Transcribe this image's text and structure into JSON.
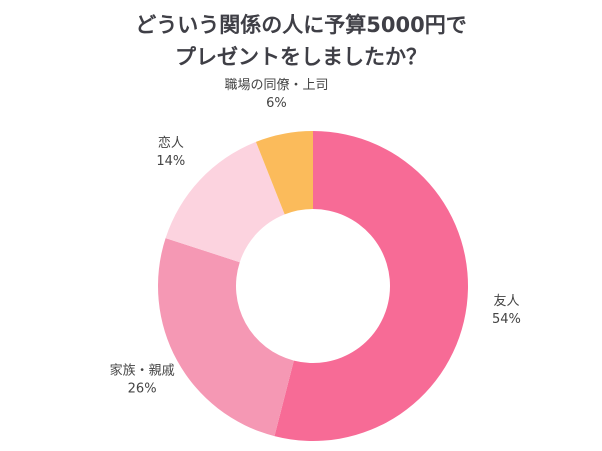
{
  "chart_data": {
    "type": "donut",
    "title": [
      "どういう関係の人に予算5000円で",
      "プレゼントをしましたか？"
    ],
    "categories": [
      "友人",
      "家族・親戚",
      "恋人",
      "職場の同僚・上司"
    ],
    "values": [
      54,
      26,
      14,
      6
    ],
    "value_labels": [
      "54%",
      "26%",
      "14%",
      "6%"
    ],
    "colors": [
      "#f76b96",
      "#f598b4",
      "#fcd3df",
      "#fbbb5b"
    ]
  }
}
